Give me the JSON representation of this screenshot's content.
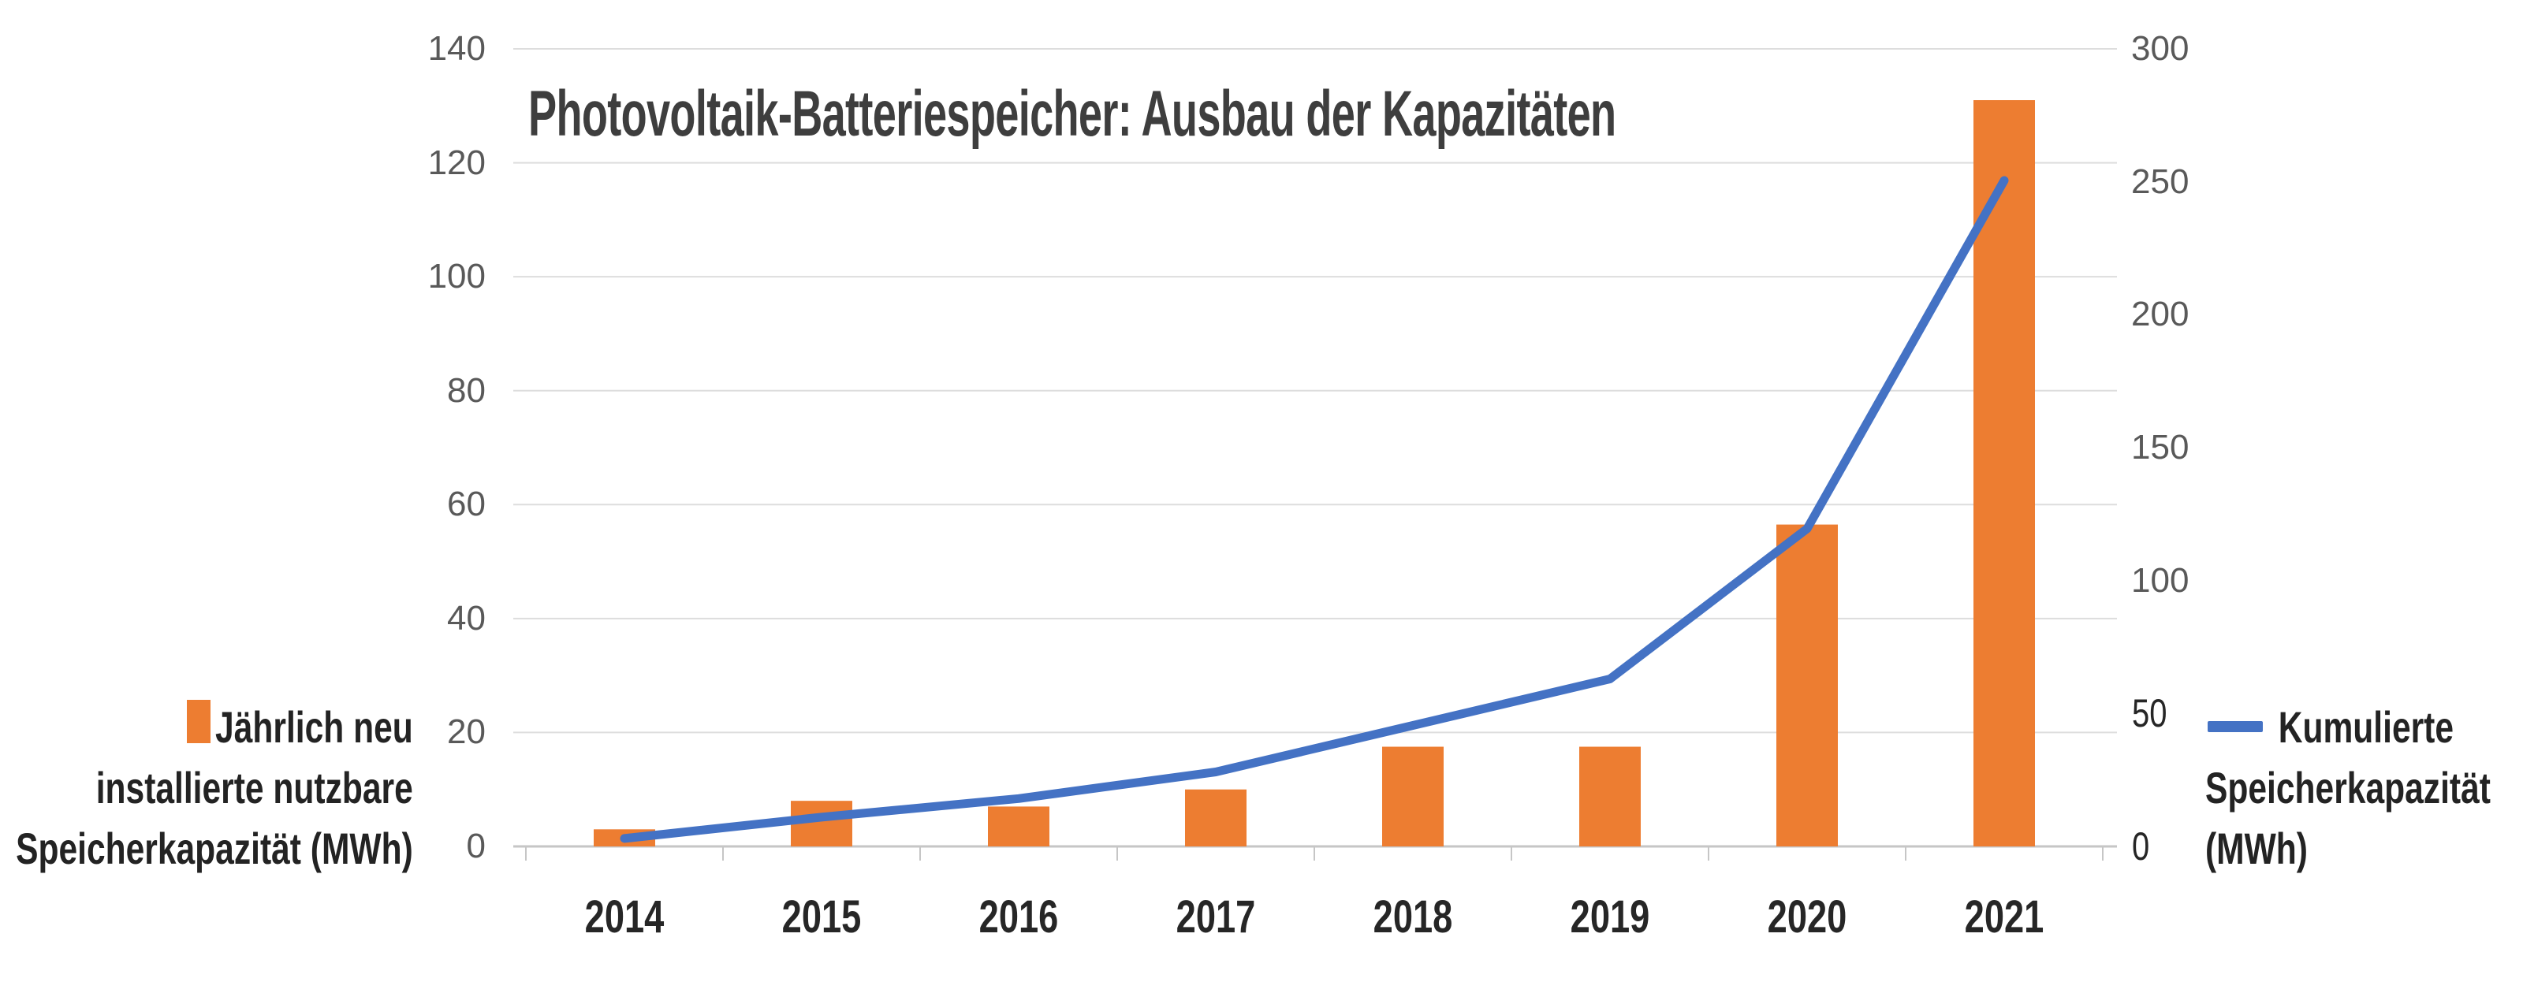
{
  "chart_data": {
    "type": "combo",
    "title": "Photovoltaik-Batteriespeicher: Ausbau der Kapazitäten",
    "categories": [
      "2014",
      "2015",
      "2016",
      "2017",
      "2018",
      "2019",
      "2020",
      "2021"
    ],
    "series": [
      {
        "name": "Jährlich neu installierte nutzbare Speicherkapazität (MWh)",
        "type": "bar",
        "axis": "left",
        "values": [
          3,
          8,
          7,
          10,
          17.5,
          17.5,
          56.5,
          131
        ]
      },
      {
        "name": "Kumulierte Speicherkapazität (MWh)",
        "type": "line",
        "axis": "right",
        "values": [
          3,
          11,
          18,
          28,
          45.5,
          63,
          119.5,
          250.5
        ]
      }
    ],
    "left_axis": {
      "min": 0,
      "max": 140,
      "step": 20,
      "ticks": [
        140,
        120,
        100,
        80,
        60,
        40,
        20,
        0
      ]
    },
    "right_axis": {
      "min": 0,
      "max": 300,
      "step": 50,
      "ticks": [
        300,
        250,
        200,
        150,
        100,
        50,
        0
      ]
    },
    "grid": "horizontal gridlines at left-axis steps",
    "legend_position": "bar legend left of plot, line legend right of plot"
  },
  "legend_left": {
    "lines": [
      "Jährlich neu",
      "installierte nutzbare",
      "Speicherkapazität (MWh)"
    ]
  },
  "legend_right": {
    "lines": [
      "Kumulierte",
      "Speicherkapazität",
      "(MWh)"
    ]
  },
  "colors": {
    "bar": "#ED7D31",
    "line": "#4472C4",
    "grid": "#DADADA",
    "axis_line": "#C6C6C6",
    "title_text": "#3E3E3E",
    "dark_text": "#262626",
    "axis_text": "#595959",
    "background": "#FFFFFF"
  }
}
